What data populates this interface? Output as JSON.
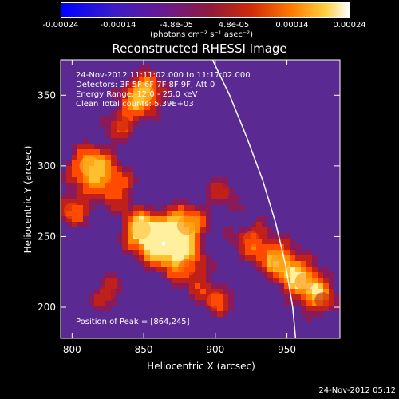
{
  "title": "Reconstructed RHESSI Image",
  "colorbar": {
    "ticks": [
      "-0.00024",
      "-0.00014",
      "-4.8e-05",
      "4.8e-05",
      "0.00014",
      "0.00024"
    ],
    "tick_values": [
      -0.00024,
      -0.00014,
      -4.8e-05,
      4.8e-05,
      0.00014,
      0.00024
    ],
    "unit_label": "(photons cm⁻² s⁻¹ asec⁻²)"
  },
  "annotations": {
    "time": "24-Nov-2012 11:11:02.000 to 11:17:02.000",
    "detectors": "Detectors: 3F 5F 6F 7F 8F 9F, Att 0",
    "energy": "Energy Range: 12.0 - 25.0 keV",
    "clean": "Clean     Total counts: 5.39E+03",
    "peak": "Position of Peak = [864,245]"
  },
  "footer_date": "24-Nov-2012 05:12",
  "colors": {
    "background": "#000000",
    "text": "#ffffff",
    "limb": "#ffffff",
    "low": "#3a1a8a",
    "mid": "#c0201a",
    "high": "#ffe060"
  },
  "chart_data": {
    "type": "heatmap",
    "title": "Reconstructed RHESSI Image",
    "xlabel": "Heliocentric X (arcsec)",
    "ylabel": "Heliocentric Y (arcsec)",
    "xlim": [
      792,
      987
    ],
    "ylim": [
      178,
      375
    ],
    "xticks": [
      800,
      850,
      900,
      950
    ],
    "yticks": [
      200,
      250,
      300,
      350
    ],
    "colorbar_range": [
      -0.00024,
      0.00024
    ],
    "peak": {
      "x": 864,
      "y": 245
    },
    "emission_regions": [
      {
        "x": 864,
        "y": 245,
        "intensity": 1.0
      },
      {
        "x": 848,
        "y": 255,
        "intensity": 0.8
      },
      {
        "x": 880,
        "y": 258,
        "intensity": 0.75
      },
      {
        "x": 812,
        "y": 300,
        "intensity": 0.8
      },
      {
        "x": 830,
        "y": 286,
        "intensity": 0.6
      },
      {
        "x": 800,
        "y": 268,
        "intensity": 0.55
      },
      {
        "x": 850,
        "y": 352,
        "intensity": 0.85
      },
      {
        "x": 835,
        "y": 330,
        "intensity": 0.5
      },
      {
        "x": 880,
        "y": 228,
        "intensity": 0.6
      },
      {
        "x": 900,
        "y": 205,
        "intensity": 0.55
      },
      {
        "x": 945,
        "y": 232,
        "intensity": 0.7
      },
      {
        "x": 962,
        "y": 218,
        "intensity": 0.7
      },
      {
        "x": 925,
        "y": 248,
        "intensity": 0.55
      },
      {
        "x": 975,
        "y": 205,
        "intensity": 0.5
      },
      {
        "x": 905,
        "y": 282,
        "intensity": 0.45
      },
      {
        "x": 825,
        "y": 210,
        "intensity": 0.5
      }
    ],
    "limb": [
      {
        "x": 898,
        "y": 375
      },
      {
        "x": 910,
        "y": 350
      },
      {
        "x": 922,
        "y": 320
      },
      {
        "x": 933,
        "y": 290
      },
      {
        "x": 942,
        "y": 260
      },
      {
        "x": 949,
        "y": 230
      },
      {
        "x": 954,
        "y": 200
      },
      {
        "x": 956,
        "y": 178
      }
    ]
  }
}
